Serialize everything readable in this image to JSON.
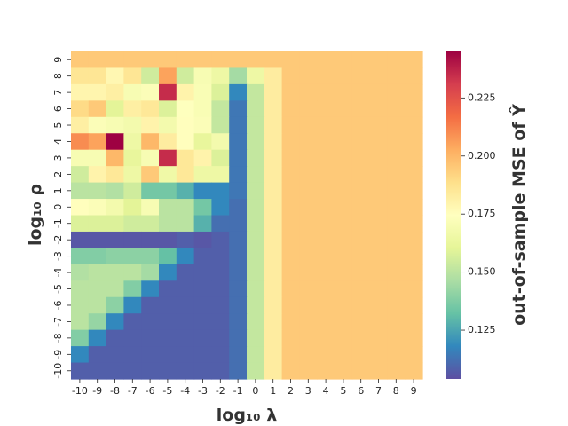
{
  "chart_data": {
    "type": "heatmap",
    "xlabel": "log₁₀ λ",
    "ylabel": "log₁₀ ρ",
    "x_ticks": [
      "-10",
      "-9",
      "-8",
      "-7",
      "-6",
      "-5",
      "-4",
      "-3",
      "-2",
      "-1",
      "0",
      "1",
      "2",
      "3",
      "4",
      "5",
      "6",
      "7",
      "8",
      "9"
    ],
    "y_ticks": [
      "9",
      "8",
      "7",
      "6",
      "5",
      "4",
      "3",
      "2",
      "1",
      "0",
      "-1",
      "-2",
      "-3",
      "-4",
      "-5",
      "-6",
      "-7",
      "-8",
      "-9",
      "-10"
    ],
    "colorbar": {
      "label": "out-of-sample MSE of Ŷ",
      "range": [
        0.104,
        0.245
      ],
      "ticks": [
        "0.125",
        "0.150",
        "0.175",
        "0.200",
        "0.225"
      ],
      "tick_values": [
        0.125,
        0.15,
        0.175,
        0.2,
        0.225
      ],
      "colormap": "Spectral_r"
    },
    "values": [
      [
        0.195,
        0.195,
        0.195,
        0.195,
        0.195,
        0.195,
        0.195,
        0.195,
        0.195,
        0.195,
        0.195,
        0.195,
        0.195,
        0.195,
        0.195,
        0.195,
        0.195,
        0.195,
        0.195,
        0.195
      ],
      [
        0.186,
        0.186,
        0.178,
        0.186,
        0.155,
        0.205,
        0.155,
        0.17,
        0.165,
        0.145,
        0.165,
        0.183,
        0.195,
        0.195,
        0.195,
        0.195,
        0.195,
        0.195,
        0.195,
        0.195
      ],
      [
        0.179,
        0.179,
        0.182,
        0.17,
        0.172,
        0.235,
        0.18,
        0.171,
        0.158,
        0.118,
        0.152,
        0.183,
        0.195,
        0.195,
        0.195,
        0.195,
        0.195,
        0.195,
        0.195,
        0.195
      ],
      [
        0.19,
        0.195,
        0.16,
        0.182,
        0.185,
        0.158,
        0.174,
        0.171,
        0.152,
        0.114,
        0.152,
        0.183,
        0.195,
        0.195,
        0.195,
        0.195,
        0.195,
        0.195,
        0.195,
        0.195
      ],
      [
        0.182,
        0.172,
        0.17,
        0.168,
        0.18,
        0.168,
        0.175,
        0.172,
        0.152,
        0.114,
        0.152,
        0.183,
        0.195,
        0.195,
        0.195,
        0.195,
        0.195,
        0.195,
        0.195,
        0.195
      ],
      [
        0.21,
        0.205,
        0.245,
        0.165,
        0.2,
        0.183,
        0.175,
        0.162,
        0.168,
        0.114,
        0.152,
        0.183,
        0.195,
        0.195,
        0.195,
        0.195,
        0.195,
        0.195,
        0.195,
        0.195
      ],
      [
        0.17,
        0.17,
        0.2,
        0.162,
        0.17,
        0.235,
        0.185,
        0.18,
        0.158,
        0.114,
        0.152,
        0.183,
        0.195,
        0.195,
        0.195,
        0.195,
        0.195,
        0.195,
        0.195,
        0.195
      ],
      [
        0.155,
        0.18,
        0.185,
        0.165,
        0.195,
        0.166,
        0.185,
        0.165,
        0.165,
        0.114,
        0.152,
        0.183,
        0.195,
        0.195,
        0.195,
        0.195,
        0.195,
        0.195,
        0.195,
        0.195
      ],
      [
        0.15,
        0.15,
        0.148,
        0.155,
        0.135,
        0.135,
        0.128,
        0.118,
        0.118,
        0.114,
        0.152,
        0.183,
        0.195,
        0.195,
        0.195,
        0.195,
        0.195,
        0.195,
        0.195,
        0.195
      ],
      [
        0.175,
        0.172,
        0.168,
        0.16,
        0.17,
        0.15,
        0.15,
        0.135,
        0.118,
        0.112,
        0.152,
        0.183,
        0.195,
        0.195,
        0.195,
        0.195,
        0.195,
        0.195,
        0.195,
        0.195
      ],
      [
        0.158,
        0.158,
        0.158,
        0.155,
        0.155,
        0.15,
        0.15,
        0.128,
        0.112,
        0.112,
        0.152,
        0.183,
        0.195,
        0.195,
        0.195,
        0.195,
        0.195,
        0.195,
        0.195,
        0.195
      ],
      [
        0.106,
        0.106,
        0.106,
        0.106,
        0.106,
        0.106,
        0.108,
        0.106,
        0.108,
        0.112,
        0.152,
        0.183,
        0.195,
        0.195,
        0.195,
        0.195,
        0.195,
        0.195,
        0.195,
        0.195
      ],
      [
        0.138,
        0.138,
        0.14,
        0.14,
        0.14,
        0.132,
        0.118,
        0.108,
        0.108,
        0.112,
        0.152,
        0.183,
        0.195,
        0.195,
        0.195,
        0.195,
        0.195,
        0.195,
        0.195,
        0.195
      ],
      [
        0.148,
        0.15,
        0.15,
        0.15,
        0.145,
        0.118,
        0.108,
        0.108,
        0.108,
        0.112,
        0.152,
        0.183,
        0.195,
        0.195,
        0.195,
        0.195,
        0.195,
        0.195,
        0.195,
        0.195
      ],
      [
        0.15,
        0.15,
        0.15,
        0.138,
        0.118,
        0.108,
        0.108,
        0.108,
        0.108,
        0.112,
        0.152,
        0.183,
        0.195,
        0.195,
        0.195,
        0.195,
        0.195,
        0.195,
        0.195,
        0.195
      ],
      [
        0.15,
        0.15,
        0.14,
        0.118,
        0.108,
        0.108,
        0.108,
        0.108,
        0.108,
        0.112,
        0.152,
        0.183,
        0.195,
        0.195,
        0.195,
        0.195,
        0.195,
        0.195,
        0.195,
        0.195
      ],
      [
        0.15,
        0.142,
        0.118,
        0.108,
        0.108,
        0.108,
        0.108,
        0.108,
        0.108,
        0.112,
        0.152,
        0.183,
        0.195,
        0.195,
        0.195,
        0.195,
        0.195,
        0.195,
        0.195,
        0.195
      ],
      [
        0.138,
        0.118,
        0.108,
        0.108,
        0.108,
        0.108,
        0.108,
        0.108,
        0.108,
        0.112,
        0.152,
        0.183,
        0.195,
        0.195,
        0.195,
        0.195,
        0.195,
        0.195,
        0.195,
        0.195
      ],
      [
        0.118,
        0.108,
        0.108,
        0.108,
        0.108,
        0.108,
        0.108,
        0.108,
        0.108,
        0.112,
        0.152,
        0.183,
        0.195,
        0.195,
        0.195,
        0.195,
        0.195,
        0.195,
        0.195,
        0.195
      ],
      [
        0.108,
        0.108,
        0.108,
        0.108,
        0.108,
        0.108,
        0.108,
        0.108,
        0.108,
        0.112,
        0.152,
        0.183,
        0.195,
        0.195,
        0.195,
        0.195,
        0.195,
        0.195,
        0.195,
        0.195
      ]
    ]
  }
}
